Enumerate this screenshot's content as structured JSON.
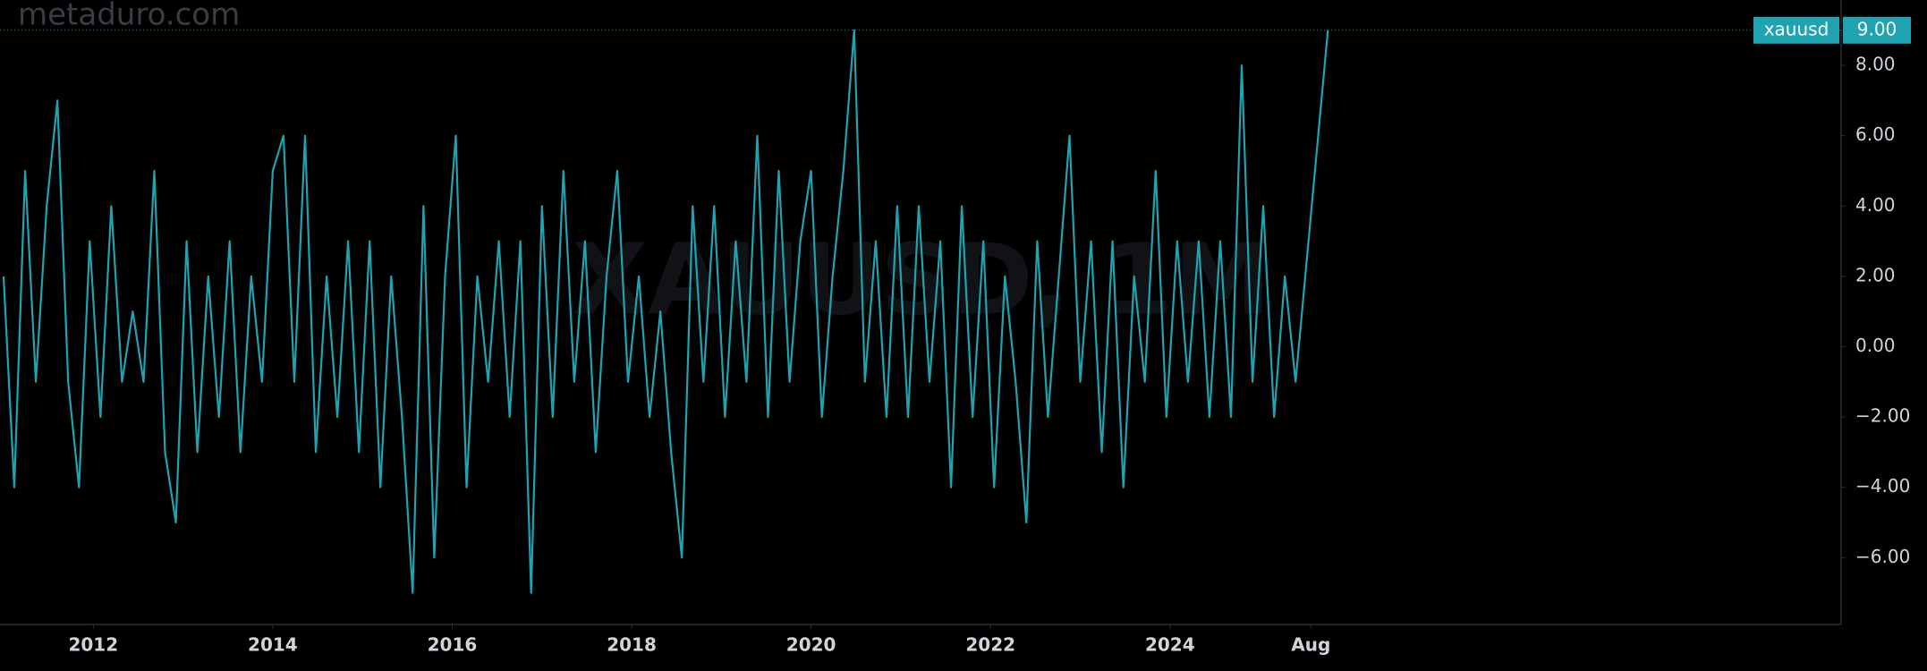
{
  "chart_data": {
    "type": "line",
    "watermark": "metaduro.com",
    "symbol_watermark": "XAUUSD, 1M",
    "x": [
      2011.0,
      2011.12,
      2011.24,
      2011.36,
      2011.48,
      2011.6,
      2011.72,
      2011.84,
      2011.96,
      2012.08,
      2012.2,
      2012.32,
      2012.44,
      2012.56,
      2012.68,
      2012.8,
      2012.92,
      2013.04,
      2013.16,
      2013.28,
      2013.4,
      2013.52,
      2013.64,
      2013.76,
      2013.88,
      2014.0,
      2014.12,
      2014.24,
      2014.36,
      2014.48,
      2014.6,
      2014.72,
      2014.84,
      2014.96,
      2015.08,
      2015.2,
      2015.32,
      2015.44,
      2015.56,
      2015.68,
      2015.8,
      2015.92,
      2016.04,
      2016.16,
      2016.28,
      2016.4,
      2016.52,
      2016.64,
      2016.76,
      2016.88,
      2017.0,
      2017.12,
      2017.24,
      2017.36,
      2017.48,
      2017.6,
      2017.72,
      2017.84,
      2017.96,
      2018.08,
      2018.2,
      2018.32,
      2018.44,
      2018.56,
      2018.68,
      2018.8,
      2018.92,
      2019.04,
      2019.16,
      2019.28,
      2019.4,
      2019.52,
      2019.64,
      2019.76,
      2019.88,
      2020.0,
      2020.12,
      2020.24,
      2020.36,
      2020.48,
      2020.6,
      2020.72,
      2020.84,
      2020.96,
      2021.08,
      2021.2,
      2021.32,
      2021.44,
      2021.56,
      2021.68,
      2021.8,
      2021.92,
      2022.04,
      2022.16,
      2022.28,
      2022.4,
      2022.52,
      2022.64,
      2022.76,
      2022.88,
      2023.0,
      2023.12,
      2023.24,
      2023.36,
      2023.48,
      2023.6,
      2023.72,
      2023.84,
      2023.96,
      2024.08,
      2024.2,
      2024.32,
      2024.44,
      2024.56,
      2024.68,
      2024.8,
      2024.92,
      2025.04,
      2025.16,
      2025.28,
      2025.4,
      2025.76
    ],
    "series": [
      {
        "name": "xauusd",
        "color": "#1fa3b1",
        "values": [
          2,
          -4,
          5,
          -1,
          4,
          7,
          -1,
          -4,
          3,
          -2,
          4,
          -1,
          1,
          -1,
          5,
          -3,
          -5,
          3,
          -3,
          2,
          -2,
          3,
          -3,
          2,
          -1,
          5,
          6,
          -1,
          6,
          -3,
          2,
          -2,
          3,
          -3,
          3,
          -4,
          2,
          -2,
          -7,
          4,
          -6,
          2,
          6,
          -4,
          2,
          -1,
          3,
          -2,
          3,
          -7,
          4,
          -2,
          5,
          -1,
          3,
          -3,
          2,
          5,
          -1,
          2,
          -2,
          1,
          -3,
          -6,
          4,
          -1,
          4,
          -2,
          3,
          -1,
          6,
          -2,
          5,
          -1,
          3,
          5,
          -2,
          2,
          5,
          9,
          -1,
          3,
          -2,
          4,
          -2,
          4,
          -1,
          3,
          -4,
          4,
          -2,
          3,
          -4,
          2,
          -1,
          -5,
          3,
          -2,
          2,
          6,
          -1,
          3,
          -3,
          3,
          -4,
          2,
          -1,
          5,
          -2,
          3,
          -1,
          3,
          -2,
          3,
          -2,
          8,
          -1,
          4,
          -2,
          2,
          -1,
          9
        ]
      }
    ],
    "last_price": {
      "value": 9,
      "label": "9.00"
    },
    "xlim": [
      2010.96,
      2031.48
    ],
    "xticks": [
      2012,
      2014,
      2016,
      2018,
      2020,
      2022,
      2024,
      {
        "value": 2025.57,
        "label": "Aug"
      }
    ],
    "ylim": [
      -7.9,
      9.86
    ],
    "yticks": [
      {
        "value": -6,
        "label": "−6.00"
      },
      {
        "value": -4,
        "label": "−4.00"
      },
      {
        "value": -2,
        "label": "−2.00"
      },
      {
        "value": 0,
        "label": "0.00"
      },
      {
        "value": 2,
        "label": "2.00"
      },
      {
        "value": 4,
        "label": "4.00"
      },
      {
        "value": 6,
        "label": "6.00"
      },
      {
        "value": 8,
        "label": "8.00"
      }
    ]
  }
}
